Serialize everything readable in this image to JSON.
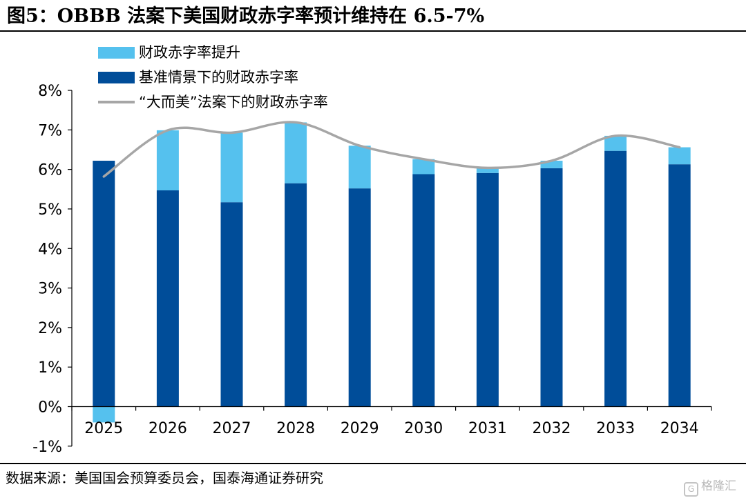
{
  "title": "图5：OBBB 法案下美国财政赤字率预计维持在 6.5-7%",
  "source": "数据来源：美国国会预算委员会，国泰海通证券研究",
  "watermark": "格隆汇",
  "watermark_logo": "G",
  "colors": {
    "boost": "#55c1ee",
    "baseline": "#004d99",
    "line": "#a6a6a6",
    "axis": "#000000"
  },
  "chart_data": {
    "type": "bar",
    "stacked": true,
    "categories": [
      "2025",
      "2026",
      "2027",
      "2028",
      "2029",
      "2030",
      "2031",
      "2032",
      "2033",
      "2034"
    ],
    "series": [
      {
        "name": "财政赤字率提升",
        "values": [
          -0.4,
          1.52,
          1.76,
          1.54,
          1.08,
          0.38,
          0.13,
          0.19,
          0.38,
          0.43
        ]
      },
      {
        "name": "基准情景下的财政赤字率",
        "values": [
          6.22,
          5.47,
          5.17,
          5.65,
          5.52,
          5.88,
          5.91,
          6.03,
          6.47,
          6.13
        ]
      },
      {
        "name": "“大而美”法案下的财政赤字率",
        "type": "line",
        "smooth": true,
        "values": [
          5.82,
          6.99,
          6.93,
          7.19,
          6.6,
          6.26,
          6.04,
          6.22,
          6.85,
          6.56
        ]
      }
    ],
    "yticks": [
      "8%",
      "7%",
      "6%",
      "5%",
      "4%",
      "3%",
      "2%",
      "1%",
      "0%",
      "-1%"
    ],
    "ylim": [
      -1,
      8
    ],
    "xlabel": "",
    "ylabel": "",
    "grid": false,
    "legend_position": "top-left"
  }
}
